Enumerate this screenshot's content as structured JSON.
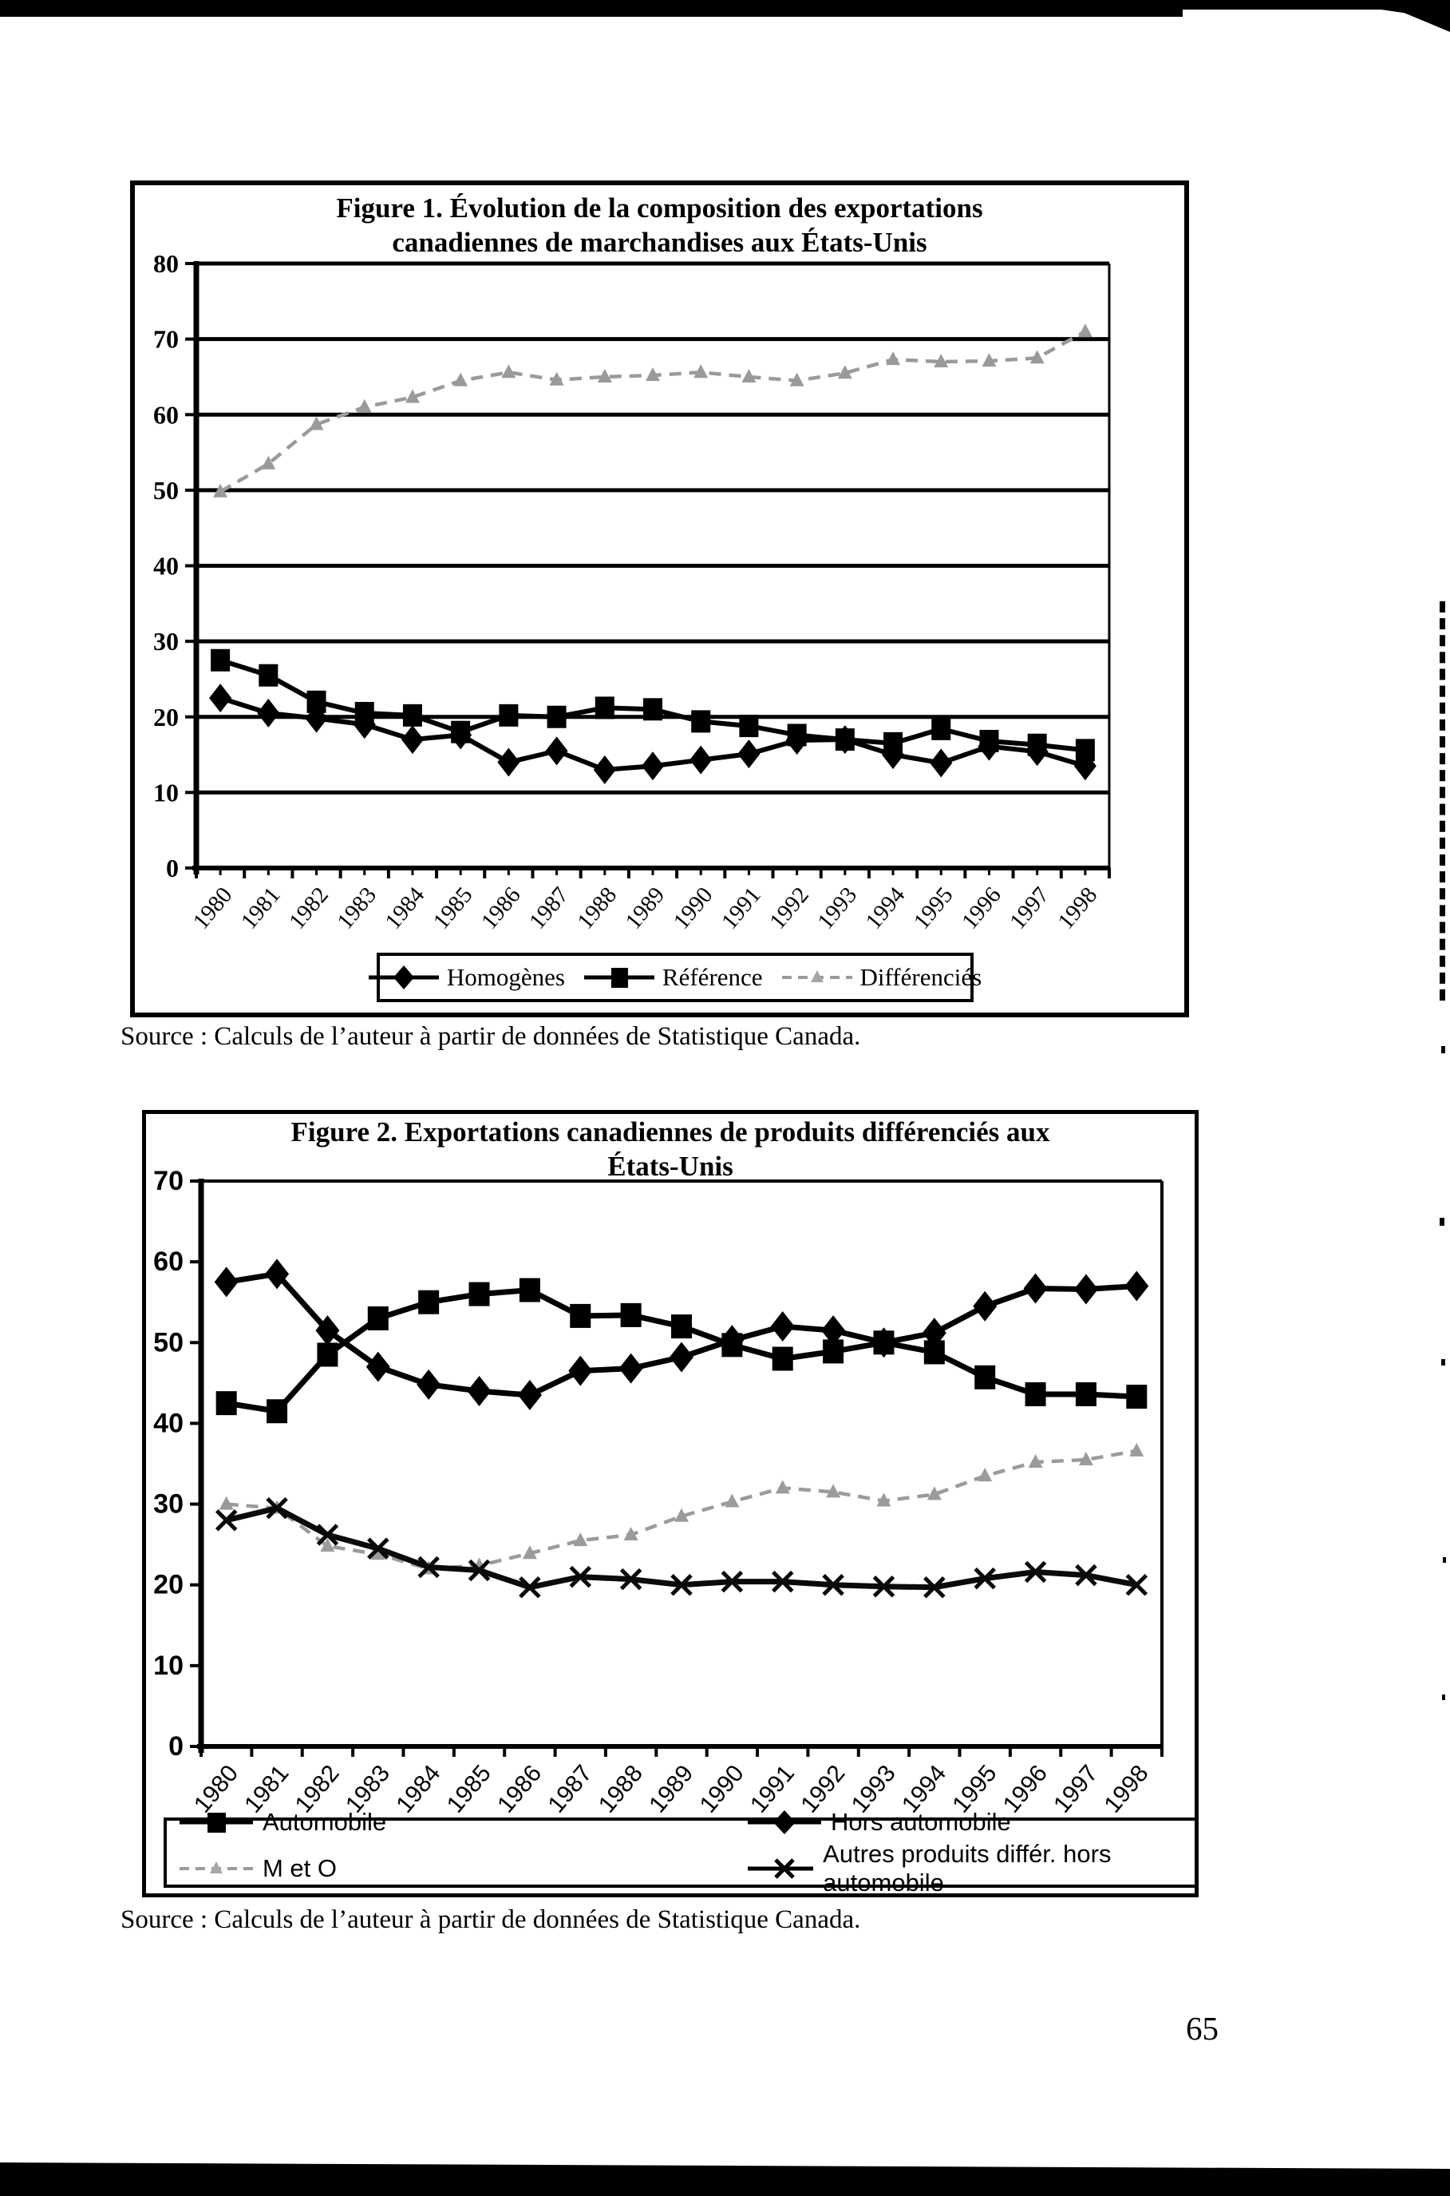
{
  "page": {
    "number": "65"
  },
  "figure1": {
    "source": "Source : Calculs de l’auteur à partir de données de Statistique Canada."
  },
  "figure2": {
    "source": "Source : Calculs de l’auteur à partir de données de Statistique Canada."
  },
  "chart_data": [
    {
      "type": "line",
      "title": "Figure 1. Évolution de la composition des exportations canadiennes de marchandises aux États-Unis",
      "title_lines": [
        "Figure 1. Évolution de la composition des exportations",
        "canadiennes de marchandises aux États-Unis"
      ],
      "categories": [
        "1980",
        "1981",
        "1982",
        "1983",
        "1984",
        "1985",
        "1986",
        "1987",
        "1988",
        "1989",
        "1990",
        "1991",
        "1992",
        "1993",
        "1994",
        "1995",
        "1996",
        "1997",
        "1998"
      ],
      "ylim": [
        0,
        80
      ],
      "ytick": 10,
      "grid": true,
      "legend_position": "bottom",
      "series": [
        {
          "name": "Homogènes",
          "marker": "diamond",
          "line": "solid",
          "color": "#000000",
          "values": [
            22.5,
            20.5,
            19.8,
            19.0,
            17.0,
            17.6,
            14.0,
            15.5,
            13.0,
            13.5,
            14.3,
            15.1,
            16.9,
            17.0,
            15.0,
            13.9,
            16.1,
            15.4,
            13.5
          ]
        },
        {
          "name": "Référence",
          "marker": "square",
          "line": "solid",
          "color": "#000000",
          "values": [
            27.5,
            25.5,
            22.0,
            20.5,
            20.2,
            18.0,
            20.2,
            20.0,
            21.2,
            21.0,
            19.4,
            18.8,
            17.6,
            17.0,
            16.5,
            18.4,
            16.8,
            16.3,
            15.6
          ]
        },
        {
          "name": "Différenciés",
          "marker": "triangle",
          "line": "dashed",
          "color": "#9a9a9a",
          "values": [
            49.8,
            53.5,
            58.7,
            61.0,
            62.3,
            64.5,
            65.6,
            64.6,
            65.0,
            65.2,
            65.6,
            65.0,
            64.5,
            65.5,
            67.3,
            67.0,
            67.1,
            67.5,
            71.0
          ]
        }
      ]
    },
    {
      "type": "line",
      "title": "Figure 2. Exportations canadiennes de produits différenciés aux États-Unis",
      "title_lines": [
        "Figure 2. Exportations canadiennes de produits différenciés aux",
        "États-Unis"
      ],
      "categories": [
        "1980",
        "1981",
        "1982",
        "1983",
        "1984",
        "1985",
        "1986",
        "1987",
        "1988",
        "1989",
        "1990",
        "1991",
        "1992",
        "1993",
        "1994",
        "1995",
        "1996",
        "1997",
        "1998"
      ],
      "ylim": [
        0,
        70
      ],
      "ytick": 10,
      "grid": false,
      "legend_position": "bottom",
      "series": [
        {
          "name": "Automobile",
          "marker": "square",
          "line": "solid",
          "color": "#000000",
          "values": [
            42.5,
            41.5,
            48.5,
            53.0,
            55.0,
            56.0,
            56.5,
            53.3,
            53.4,
            52.0,
            49.7,
            48.0,
            48.9,
            50.0,
            48.8,
            45.7,
            43.6,
            43.6,
            43.3
          ]
        },
        {
          "name": "Hors automobile",
          "marker": "diamond",
          "line": "solid",
          "color": "#000000",
          "values": [
            57.5,
            58.5,
            51.5,
            47.0,
            44.8,
            44.0,
            43.5,
            46.5,
            46.8,
            48.2,
            50.3,
            52.0,
            51.5,
            50.0,
            51.2,
            54.5,
            56.7,
            56.6,
            57.0
          ]
        },
        {
          "name": "M et O",
          "marker": "triangle",
          "line": "dashed",
          "color": "#9b9b9b",
          "values": [
            30.0,
            29.5,
            24.8,
            23.8,
            22.0,
            22.4,
            23.9,
            25.5,
            26.2,
            28.5,
            30.3,
            32.0,
            31.5,
            30.4,
            31.2,
            33.5,
            35.2,
            35.5,
            36.6
          ]
        },
        {
          "name": "Autres produits différ. hors automobile",
          "marker": "x",
          "line": "solid",
          "color": "#0a0a0a",
          "values": [
            28.0,
            29.5,
            26.2,
            24.5,
            22.2,
            21.8,
            19.7,
            21.0,
            20.7,
            20.0,
            20.4,
            20.4,
            20.0,
            19.8,
            19.7,
            20.8,
            21.6,
            21.2,
            20.0
          ]
        }
      ]
    }
  ]
}
